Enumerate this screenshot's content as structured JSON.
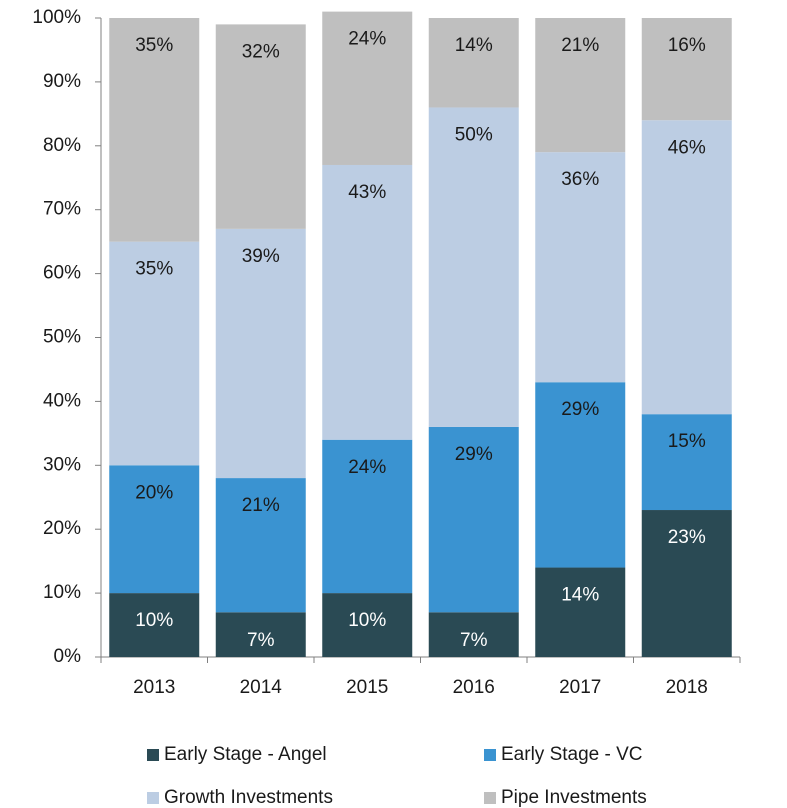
{
  "chart_data": {
    "type": "stacked_bar",
    "categories": [
      "2013",
      "2014",
      "2015",
      "2016",
      "2017",
      "2018"
    ],
    "series": [
      {
        "name": "Early Stage - Angel",
        "color": "#2a4a54",
        "label_color": "#ffffff",
        "values": [
          10,
          7,
          10,
          7,
          14,
          23
        ],
        "value_labels": [
          "10%",
          "7%",
          "10%",
          "7%",
          "14%",
          "23%"
        ]
      },
      {
        "name": "Early Stage - VC",
        "color": "#3a93d1",
        "label_color": "#1a1a1a",
        "values": [
          20,
          21,
          24,
          29,
          29,
          15
        ],
        "value_labels": [
          "20%",
          "21%",
          "24%",
          "29%",
          "29%",
          "15%"
        ]
      },
      {
        "name": "Growth Investments",
        "color": "#bccde3",
        "label_color": "#1a1a1a",
        "values": [
          35,
          39,
          43,
          50,
          36,
          46
        ],
        "value_labels": [
          "35%",
          "39%",
          "43%",
          "50%",
          "36%",
          "46%"
        ]
      },
      {
        "name": "Pipe Investments",
        "color": "#bfbfbf",
        "label_color": "#1a1a1a",
        "values": [
          35,
          32,
          24,
          14,
          21,
          16
        ],
        "value_labels": [
          "35%",
          "32%",
          "24%",
          "14%",
          "21%",
          "16%"
        ]
      }
    ],
    "ylim": [
      0,
      100
    ],
    "yticks": [
      {
        "value": 0,
        "label": "0%"
      },
      {
        "value": 10,
        "label": "10%"
      },
      {
        "value": 20,
        "label": "20%"
      },
      {
        "value": 30,
        "label": "30%"
      },
      {
        "value": 40,
        "label": "40%"
      },
      {
        "value": 50,
        "label": "50%"
      },
      {
        "value": 60,
        "label": "60%"
      },
      {
        "value": 70,
        "label": "70%"
      },
      {
        "value": 80,
        "label": "80%"
      },
      {
        "value": 90,
        "label": "90%"
      },
      {
        "value": 100,
        "label": "100%"
      }
    ],
    "grid": false,
    "legend": "bottom"
  }
}
